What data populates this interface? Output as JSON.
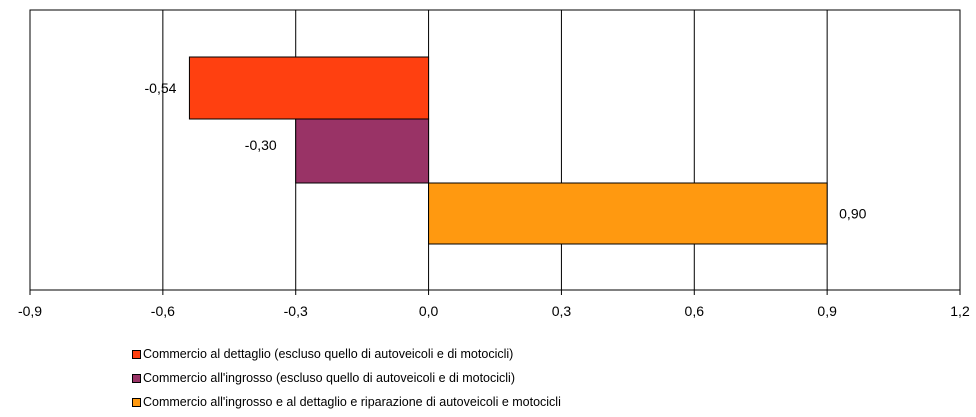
{
  "chart_data": {
    "type": "bar",
    "orientation": "horizontal",
    "title": "",
    "xlabel": "",
    "ylabel": "",
    "xlim": [
      -0.9,
      1.2
    ],
    "xticks": [
      "-0,9",
      "-0,6",
      "-0,3",
      "0,0",
      "0,3",
      "0,6",
      "0,9",
      "1,2"
    ],
    "grid": true,
    "legend_position": "bottom",
    "series": [
      {
        "name": "Commercio al dettaglio (escluso quello di autoveicoli e di motocicli)",
        "value": -0.54,
        "label": "-0,54",
        "color": "#FF4010"
      },
      {
        "name": "Commercio all'ingrosso (escluso quello di autoveicoli e di motocicli)",
        "value": -0.3,
        "label": "-0,30",
        "color": "#993366"
      },
      {
        "name": "Commercio all'ingrosso e al dettaglio e riparazione di autoveicoli e motocicli",
        "value": 0.9,
        "label": "0,90",
        "color": "#FF9910"
      }
    ]
  }
}
